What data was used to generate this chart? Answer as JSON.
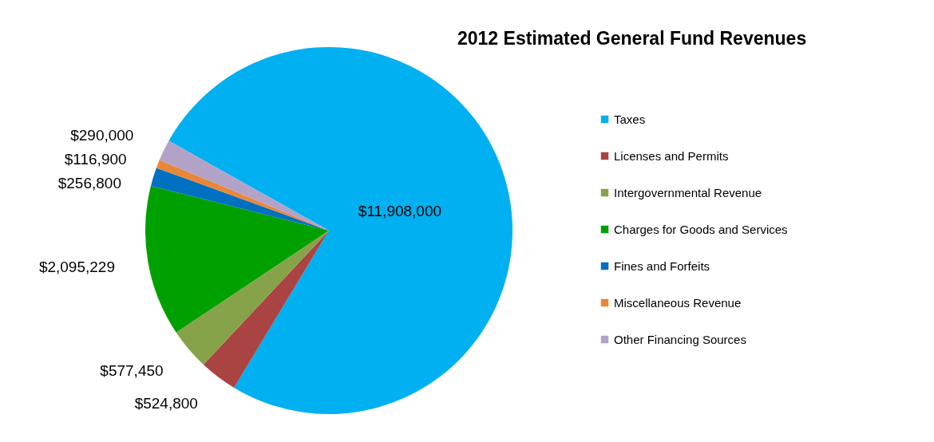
{
  "chart_data": {
    "type": "pie",
    "title": "2012 Estimated General Fund Revenues",
    "categories": [
      "Taxes",
      "Licenses and Permits",
      "Intergovernmental Revenue",
      "Charges for Goods and Services",
      "Fines and Forfeits",
      "Miscellaneous Revenue",
      "Other Financing Sources"
    ],
    "values": [
      11908000,
      524800,
      577450,
      2095229,
      256800,
      116900,
      290000
    ],
    "colors": [
      "#00b0f0",
      "#a94442",
      "#86a34a",
      "#00a000",
      "#0070c0",
      "#e8873a",
      "#b3a2c7"
    ],
    "value_labels": [
      "$11,908,000",
      "$524,800",
      "$577,450",
      "$2,095,229",
      "$256,800",
      "$116,900",
      "$290,000"
    ],
    "legend": "right"
  }
}
